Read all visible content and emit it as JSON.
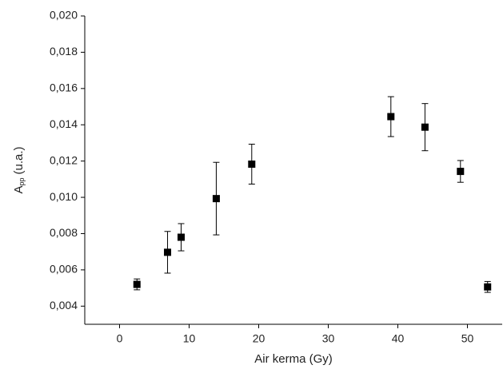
{
  "chart_data": {
    "type": "scatter",
    "x_label": "Air kerma (Gy)",
    "y_label": {
      "main": "A",
      "sub": "pp",
      "unit": "(u.a.)"
    },
    "x": [
      2.5,
      6.9,
      8.85,
      13.9,
      19,
      39,
      43.9,
      49,
      52.9
    ],
    "values": [
      0.0052,
      0.00697,
      0.0078,
      0.00993,
      0.01183,
      0.01445,
      0.01387,
      0.01143,
      0.00506
    ],
    "errors": [
      0.0003,
      0.00115,
      0.00075,
      0.002,
      0.0011,
      0.0011,
      0.0013,
      0.0006,
      0.0003
    ],
    "color": "#000000",
    "xlim": [
      -5,
      55
    ],
    "xticks": [
      0,
      10,
      20,
      30,
      40,
      50
    ],
    "ylim": [
      0.003,
      0.02
    ],
    "yticks": [
      {
        "value": 0.004,
        "label": "0,004"
      },
      {
        "value": 0.006,
        "label": "0,006"
      },
      {
        "value": 0.008,
        "label": "0,008"
      },
      {
        "value": 0.01,
        "label": "0,010"
      },
      {
        "value": 0.012,
        "label": "0,012"
      },
      {
        "value": 0.014,
        "label": "0,014"
      },
      {
        "value": 0.016,
        "label": "0,016"
      },
      {
        "value": 0.018,
        "label": "0,018"
      },
      {
        "value": 0.02,
        "label": "0,020"
      }
    ]
  }
}
